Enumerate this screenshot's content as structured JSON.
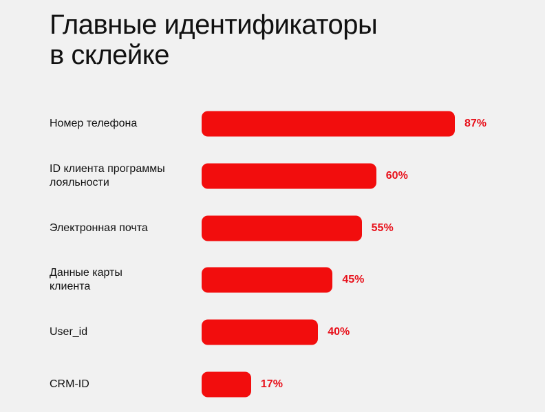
{
  "chart_data": {
    "type": "bar",
    "orientation": "horizontal",
    "title": "Главные идентификаторы\nв склейке",
    "categories": [
      "Номер телефона",
      "ID клиента программы\nлояльности",
      "Электронная почта",
      "Данные карты\nклиента",
      "User_id",
      "CRM-ID"
    ],
    "values": [
      87,
      60,
      55,
      45,
      40,
      17
    ],
    "value_labels": [
      "87%",
      "60%",
      "55%",
      "45%",
      "40%",
      "17%"
    ],
    "color": "#f20d0d"
  }
}
